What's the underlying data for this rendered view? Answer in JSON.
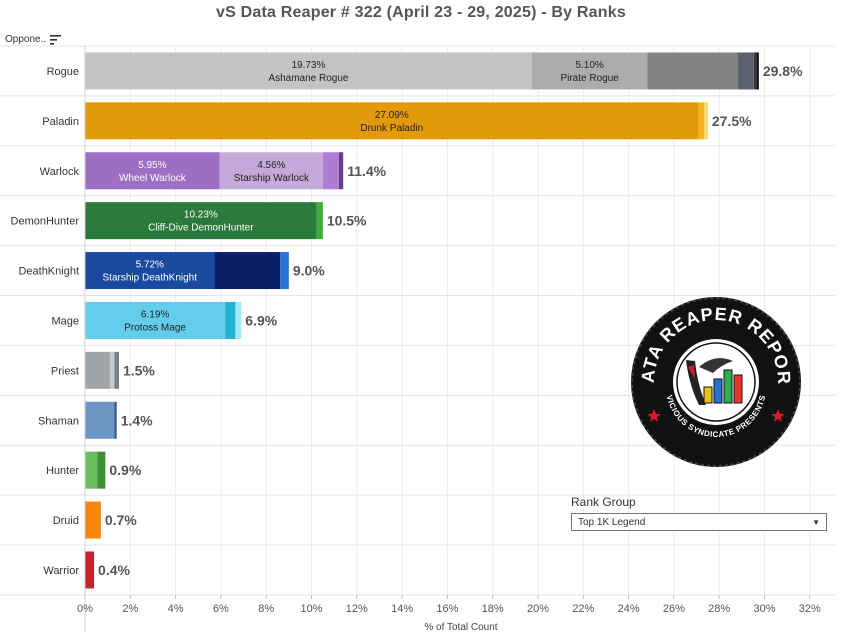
{
  "title": "vS Data Reaper #  322 (April 23 - 29, 2025) - By Ranks",
  "opponent_header": "Oppone..",
  "rank_filter": {
    "title": "Rank Group",
    "selected": "Top 1K Legend"
  },
  "logo": {
    "line1": "DATA REAPER REPORT",
    "line2": "VICIOUS SYNDICATE PRESENTS"
  },
  "chart_data": {
    "type": "bar",
    "orientation": "horizontal",
    "stacked": true,
    "xlabel": "% of Total Count",
    "xlim": [
      0,
      32.5
    ],
    "xticks": [
      "0%",
      "2%",
      "4%",
      "6%",
      "8%",
      "10%",
      "12%",
      "14%",
      "16%",
      "18%",
      "20%",
      "22%",
      "24%",
      "26%",
      "28%",
      "30%",
      "32%"
    ],
    "categories": [
      "Rogue",
      "Paladin",
      "Warlock",
      "DemonHunter",
      "DeathKnight",
      "Mage",
      "Priest",
      "Shaman",
      "Hunter",
      "Druid",
      "Warrior"
    ],
    "totals": [
      "29.8%",
      "27.5%",
      "11.4%",
      "10.5%",
      "9.0%",
      "6.9%",
      "1.5%",
      "1.4%",
      "0.9%",
      "0.7%",
      "0.4%"
    ],
    "bars": [
      {
        "class": "Rogue",
        "segments": [
          {
            "value": 19.73,
            "color": "#c3c3c3",
            "pct_label": "19.73%",
            "name": "Ashamane Rogue",
            "text_color": "#222222"
          },
          {
            "value": 5.1,
            "color": "#acacac",
            "pct_label": "5.10%",
            "name": "Pirate Rogue",
            "text_color": "#222222"
          },
          {
            "value": 4.0,
            "color": "#838383"
          },
          {
            "value": 0.7,
            "color": "#5d6270"
          },
          {
            "value": 0.12,
            "color": "#3a3a3a"
          },
          {
            "value": 0.1,
            "color": "#111111"
          }
        ]
      },
      {
        "class": "Paladin",
        "segments": [
          {
            "value": 27.09,
            "color": "#e39a0a",
            "pct_label": "27.09%",
            "name": "Drunk Paladin",
            "text_color": "#222222"
          },
          {
            "value": 0.25,
            "color": "#f2b71f"
          },
          {
            "value": 0.16,
            "color": "#fbd86a"
          }
        ]
      },
      {
        "class": "Warlock",
        "segments": [
          {
            "value": 5.95,
            "color": "#9c6fc3",
            "pct_label": "5.95%",
            "name": "Wheel Warlock",
            "text_color": "#ffffff"
          },
          {
            "value": 4.56,
            "color": "#c5a9da",
            "pct_label": "4.56%",
            "name": "Starship Warlock",
            "text_color": "#222222"
          },
          {
            "value": 0.7,
            "color": "#b07cd1"
          },
          {
            "value": 0.19,
            "color": "#6c3b8e"
          }
        ]
      },
      {
        "class": "DemonHunter",
        "segments": [
          {
            "value": 10.23,
            "color": "#2b7a3b",
            "pct_label": "10.23%",
            "name": "Cliff-Dive DemonHunter",
            "text_color": "#ffffff"
          },
          {
            "value": 0.27,
            "color": "#3aae3a"
          }
        ]
      },
      {
        "class": "DeathKnight",
        "segments": [
          {
            "value": 5.72,
            "color": "#1a49a0",
            "pct_label": "5.72%",
            "name": "Starship DeathKnight",
            "text_color": "#ffffff"
          },
          {
            "value": 2.9,
            "color": "#0c2068"
          },
          {
            "value": 0.38,
            "color": "#2a74d8"
          }
        ]
      },
      {
        "class": "Mage",
        "segments": [
          {
            "value": 6.19,
            "color": "#64cdec",
            "pct_label": "6.19%",
            "name": "Protoss Mage",
            "text_color": "#222222"
          },
          {
            "value": 0.45,
            "color": "#24b3cf"
          },
          {
            "value": 0.26,
            "color": "#a6e7f5"
          }
        ]
      },
      {
        "class": "Priest",
        "segments": [
          {
            "value": 1.1,
            "color": "#a2a5a8"
          },
          {
            "value": 0.2,
            "color": "#c7c9cb"
          },
          {
            "value": 0.2,
            "color": "#7d8084"
          }
        ]
      },
      {
        "class": "Shaman",
        "segments": [
          {
            "value": 1.3,
            "color": "#6c95c4"
          },
          {
            "value": 0.1,
            "color": "#355a8c"
          }
        ]
      },
      {
        "class": "Hunter",
        "segments": [
          {
            "value": 0.55,
            "color": "#6cbd5c"
          },
          {
            "value": 0.35,
            "color": "#3f8f35"
          }
        ]
      },
      {
        "class": "Druid",
        "segments": [
          {
            "value": 0.7,
            "color": "#f8860e"
          }
        ]
      },
      {
        "class": "Warrior",
        "segments": [
          {
            "value": 0.4,
            "color": "#c8222b"
          }
        ]
      }
    ]
  }
}
